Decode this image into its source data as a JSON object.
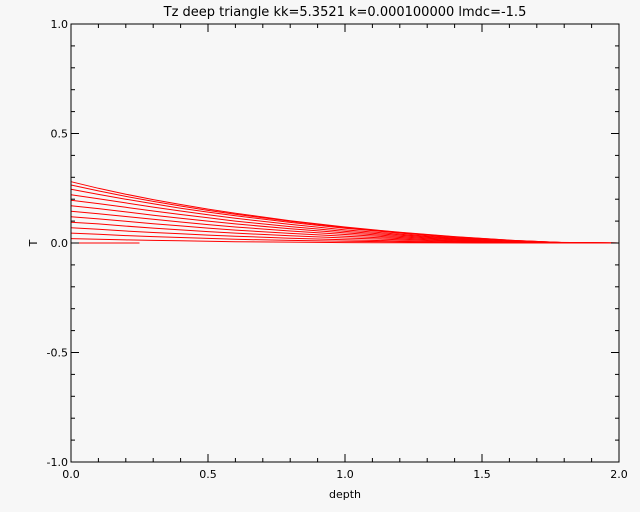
{
  "chart_data": {
    "type": "line",
    "title": "Tz deep triangle kk=5.3521 k=0.000100000 lmdc=-1.5",
    "xlabel": "depth",
    "ylabel": "T",
    "xlim": [
      0.0,
      2.0
    ],
    "ylim": [
      -1.0,
      1.0
    ],
    "x_ticks": [
      0.0,
      0.5,
      1.0,
      1.5,
      2.0
    ],
    "x_tick_labels": [
      "0.0",
      "0.5",
      "1.0",
      "1.5",
      "2.0"
    ],
    "y_ticks": [
      -1.0,
      -0.5,
      0.0,
      0.5,
      1.0
    ],
    "y_tick_labels": [
      "-1.0",
      "-0.5",
      "0.0",
      "0.5",
      "1.0"
    ],
    "grid": false,
    "line_color": "#ff0000",
    "series": [
      {
        "x": [
          0.0,
          0.05,
          0.1,
          0.15,
          0.2,
          0.25
        ],
        "y": [
          0.0,
          0.0,
          0.0,
          0.0,
          0.0,
          0.0
        ]
      },
      {
        "x": [
          0.0,
          0.1,
          0.2,
          0.3,
          0.4,
          0.5,
          0.6,
          0.8,
          1.0,
          1.2,
          1.4,
          1.5,
          1.6,
          2.0
        ],
        "y": [
          0.02,
          0.017,
          0.014,
          0.012,
          0.01,
          0.008,
          0.006,
          0.004,
          0.002,
          0.001,
          0.0005,
          0.0,
          0.0,
          0.0
        ]
      },
      {
        "x": [
          0.0,
          0.1,
          0.2,
          0.3,
          0.4,
          0.5,
          0.6,
          0.8,
          1.0,
          1.2,
          1.4,
          1.6,
          2.0
        ],
        "y": [
          0.045,
          0.04,
          0.034,
          0.029,
          0.025,
          0.021,
          0.017,
          0.012,
          0.008,
          0.005,
          0.002,
          0.0,
          0.0
        ]
      },
      {
        "x": [
          0.0,
          0.1,
          0.2,
          0.3,
          0.4,
          0.5,
          0.6,
          0.8,
          1.0,
          1.2,
          1.4,
          1.6,
          2.0
        ],
        "y": [
          0.07,
          0.063,
          0.055,
          0.048,
          0.042,
          0.036,
          0.031,
          0.022,
          0.015,
          0.009,
          0.005,
          0.001,
          0.0
        ]
      },
      {
        "x": [
          0.0,
          0.1,
          0.2,
          0.3,
          0.4,
          0.5,
          0.6,
          0.8,
          1.0,
          1.2,
          1.4,
          1.6,
          2.0
        ],
        "y": [
          0.095,
          0.087,
          0.077,
          0.068,
          0.06,
          0.052,
          0.045,
          0.033,
          0.023,
          0.015,
          0.008,
          0.002,
          0.0
        ]
      },
      {
        "x": [
          0.0,
          0.1,
          0.2,
          0.3,
          0.4,
          0.5,
          0.6,
          0.8,
          1.0,
          1.2,
          1.4,
          1.6,
          2.0
        ],
        "y": [
          0.12,
          0.11,
          0.099,
          0.088,
          0.078,
          0.068,
          0.059,
          0.044,
          0.031,
          0.02,
          0.011,
          0.003,
          0.0
        ]
      },
      {
        "x": [
          0.0,
          0.1,
          0.2,
          0.3,
          0.4,
          0.5,
          0.6,
          0.8,
          1.0,
          1.2,
          1.4,
          1.6,
          2.0
        ],
        "y": [
          0.145,
          0.134,
          0.121,
          0.108,
          0.096,
          0.084,
          0.073,
          0.055,
          0.039,
          0.025,
          0.014,
          0.004,
          0.0
        ]
      },
      {
        "x": [
          0.0,
          0.1,
          0.2,
          0.3,
          0.4,
          0.5,
          0.6,
          0.8,
          1.0,
          1.2,
          1.4,
          1.6,
          2.0
        ],
        "y": [
          0.17,
          0.157,
          0.142,
          0.127,
          0.113,
          0.1,
          0.087,
          0.065,
          0.046,
          0.03,
          0.017,
          0.005,
          0.0
        ]
      },
      {
        "x": [
          0.0,
          0.1,
          0.2,
          0.3,
          0.4,
          0.5,
          0.6,
          0.8,
          1.0,
          1.2,
          1.4,
          1.6,
          1.8,
          2.0
        ],
        "y": [
          0.195,
          0.18,
          0.163,
          0.146,
          0.13,
          0.115,
          0.1,
          0.075,
          0.053,
          0.035,
          0.02,
          0.008,
          0.0,
          0.0
        ]
      },
      {
        "x": [
          0.0,
          0.1,
          0.2,
          0.3,
          0.4,
          0.5,
          0.6,
          0.8,
          1.0,
          1.2,
          1.4,
          1.6,
          1.8,
          2.0
        ],
        "y": [
          0.22,
          0.202,
          0.183,
          0.164,
          0.146,
          0.129,
          0.113,
          0.085,
          0.06,
          0.04,
          0.023,
          0.01,
          0.001,
          0.0
        ]
      },
      {
        "x": [
          0.0,
          0.1,
          0.2,
          0.3,
          0.4,
          0.5,
          0.6,
          0.8,
          1.0,
          1.2,
          1.4,
          1.6,
          1.8,
          2.0
        ],
        "y": [
          0.245,
          0.222,
          0.2,
          0.179,
          0.159,
          0.141,
          0.124,
          0.094,
          0.067,
          0.045,
          0.026,
          0.012,
          0.002,
          0.0
        ]
      },
      {
        "x": [
          0.0,
          0.1,
          0.2,
          0.3,
          0.4,
          0.5,
          0.6,
          0.8,
          1.0,
          1.2,
          1.4,
          1.6,
          1.8,
          2.0
        ],
        "y": [
          0.265,
          0.238,
          0.213,
          0.19,
          0.169,
          0.149,
          0.131,
          0.099,
          0.071,
          0.048,
          0.028,
          0.013,
          0.002,
          0.0
        ]
      },
      {
        "x": [
          0.0,
          0.1,
          0.2,
          0.3,
          0.4,
          0.5,
          0.6,
          0.8,
          1.0,
          1.2,
          1.4,
          1.6,
          1.8,
          2.0
        ],
        "y": [
          0.28,
          0.25,
          0.223,
          0.198,
          0.176,
          0.155,
          0.136,
          0.102,
          0.073,
          0.049,
          0.029,
          0.013,
          0.002,
          0.0
        ]
      }
    ]
  }
}
